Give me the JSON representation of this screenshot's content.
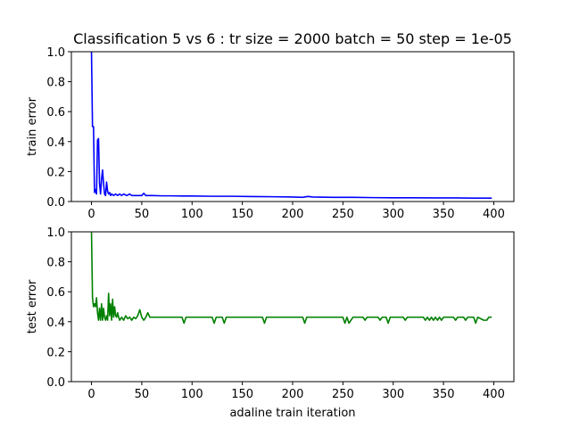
{
  "chart_data": [
    {
      "type": "line",
      "title": "Classification 5 vs 6 : tr size = 2000 batch = 50 step = 1e-05",
      "xlabel": "",
      "ylabel": "train error",
      "xlim": [
        -20,
        420
      ],
      "ylim": [
        0.0,
        1.0
      ],
      "xticks": [
        0,
        50,
        100,
        150,
        200,
        250,
        300,
        350,
        400
      ],
      "yticks": [
        0.0,
        0.2,
        0.4,
        0.6,
        0.8,
        1.0
      ],
      "xtick_labels": [
        "0",
        "50",
        "100",
        "150",
        "200",
        "250",
        "300",
        "350",
        "400"
      ],
      "ytick_labels": [
        "0.0",
        "0.2",
        "0.4",
        "0.6",
        "0.8",
        "1.0"
      ],
      "grid": false,
      "series": [
        {
          "color": "#0000ff",
          "x": [
            0,
            1,
            2,
            3,
            4,
            5,
            6,
            7,
            8,
            9,
            10,
            11,
            12,
            13,
            14,
            15,
            16,
            17,
            18,
            19,
            20,
            22,
            24,
            26,
            28,
            30,
            32,
            35,
            38,
            40,
            45,
            50,
            52,
            54,
            56,
            60,
            70,
            80,
            90,
            100,
            120,
            140,
            160,
            180,
            200,
            210,
            215,
            220,
            240,
            260,
            280,
            300,
            320,
            340,
            360,
            380,
            398
          ],
          "y": [
            1.0,
            0.5,
            0.5,
            0.06,
            0.08,
            0.05,
            0.41,
            0.42,
            0.12,
            0.05,
            0.15,
            0.21,
            0.12,
            0.05,
            0.04,
            0.13,
            0.07,
            0.05,
            0.06,
            0.04,
            0.05,
            0.04,
            0.05,
            0.04,
            0.05,
            0.04,
            0.05,
            0.04,
            0.05,
            0.04,
            0.04,
            0.04,
            0.055,
            0.04,
            0.04,
            0.04,
            0.038,
            0.038,
            0.037,
            0.037,
            0.035,
            0.035,
            0.033,
            0.032,
            0.03,
            0.028,
            0.034,
            0.03,
            0.028,
            0.028,
            0.026,
            0.025,
            0.025,
            0.024,
            0.024,
            0.023,
            0.023
          ]
        }
      ]
    },
    {
      "type": "line",
      "title": "",
      "xlabel": "adaline train iteration",
      "ylabel": "test error",
      "xlim": [
        -20,
        420
      ],
      "ylim": [
        0.0,
        1.0
      ],
      "xticks": [
        0,
        50,
        100,
        150,
        200,
        250,
        300,
        350,
        400
      ],
      "yticks": [
        0.0,
        0.2,
        0.4,
        0.6,
        0.8,
        1.0
      ],
      "xtick_labels": [
        "0",
        "50",
        "100",
        "150",
        "200",
        "250",
        "300",
        "350",
        "400"
      ],
      "ytick_labels": [
        "0.0",
        "0.2",
        "0.4",
        "0.6",
        "0.8",
        "1.0"
      ],
      "grid": false,
      "series": [
        {
          "color": "#008000",
          "x": [
            0,
            1,
            2,
            3,
            4,
            5,
            6,
            7,
            8,
            9,
            10,
            11,
            12,
            13,
            14,
            15,
            16,
            17,
            18,
            19,
            20,
            21,
            22,
            23,
            24,
            25,
            26,
            27,
            28,
            30,
            32,
            34,
            36,
            38,
            40,
            42,
            44,
            46,
            48,
            50,
            52,
            54,
            56,
            58,
            60,
            70,
            80,
            90,
            92,
            94,
            100,
            110,
            120,
            122,
            124,
            130,
            132,
            134,
            150,
            170,
            172,
            174,
            200,
            210,
            212,
            214,
            220,
            250,
            252,
            254,
            256,
            260,
            270,
            272,
            274,
            280,
            285,
            287,
            289,
            293,
            295,
            297,
            300,
            305,
            310,
            312,
            314,
            318,
            320,
            330,
            332,
            334,
            336,
            338,
            340,
            342,
            344,
            346,
            348,
            350,
            360,
            362,
            364,
            366,
            370,
            372,
            374,
            380,
            382,
            384,
            390,
            393,
            395,
            398
          ],
          "y": [
            1.0,
            0.56,
            0.5,
            0.52,
            0.5,
            0.56,
            0.46,
            0.41,
            0.49,
            0.41,
            0.52,
            0.41,
            0.49,
            0.43,
            0.41,
            0.44,
            0.41,
            0.59,
            0.44,
            0.52,
            0.41,
            0.55,
            0.43,
            0.5,
            0.44,
            0.43,
            0.46,
            0.43,
            0.41,
            0.43,
            0.41,
            0.44,
            0.42,
            0.43,
            0.41,
            0.43,
            0.42,
            0.44,
            0.48,
            0.43,
            0.41,
            0.43,
            0.46,
            0.43,
            0.43,
            0.43,
            0.43,
            0.43,
            0.39,
            0.43,
            0.43,
            0.43,
            0.43,
            0.39,
            0.43,
            0.43,
            0.39,
            0.43,
            0.43,
            0.43,
            0.39,
            0.43,
            0.43,
            0.43,
            0.39,
            0.43,
            0.43,
            0.43,
            0.39,
            0.43,
            0.39,
            0.43,
            0.43,
            0.41,
            0.43,
            0.43,
            0.43,
            0.41,
            0.43,
            0.43,
            0.39,
            0.43,
            0.43,
            0.43,
            0.43,
            0.41,
            0.43,
            0.43,
            0.43,
            0.43,
            0.41,
            0.43,
            0.41,
            0.43,
            0.41,
            0.43,
            0.41,
            0.43,
            0.41,
            0.43,
            0.43,
            0.41,
            0.43,
            0.43,
            0.43,
            0.41,
            0.43,
            0.43,
            0.39,
            0.43,
            0.41,
            0.41,
            0.43,
            0.43
          ]
        }
      ]
    }
  ]
}
